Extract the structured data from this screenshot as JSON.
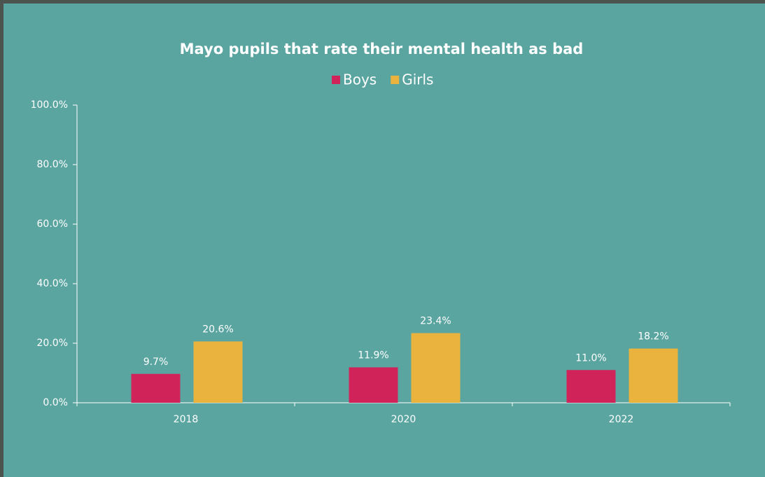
{
  "chart_data": {
    "type": "bar",
    "title": "Mayo pupils that rate their mental health as bad",
    "categories": [
      "2018",
      "2020",
      "2022"
    ],
    "series": [
      {
        "name": "Boys",
        "color": "#cf2359",
        "values": [
          9.7,
          11.9,
          11.0
        ],
        "value_labels": [
          "9.7%",
          "11.9%",
          "11.0%"
        ]
      },
      {
        "name": "Girls",
        "color": "#eab33e",
        "values": [
          20.6,
          23.4,
          18.2
        ],
        "value_labels": [
          "20.6%",
          "23.4%",
          "18.2%"
        ]
      }
    ],
    "ylim": [
      0,
      100
    ],
    "yticks": [
      {
        "value": 0,
        "label": "0.0%"
      },
      {
        "value": 20,
        "label": "20.0%"
      },
      {
        "value": 40,
        "label": "40.0%"
      },
      {
        "value": 60,
        "label": "60.0%"
      },
      {
        "value": 80,
        "label": "80.0%"
      },
      {
        "value": 100,
        "label": "100.0%"
      }
    ],
    "grid": false,
    "legend": "top"
  }
}
